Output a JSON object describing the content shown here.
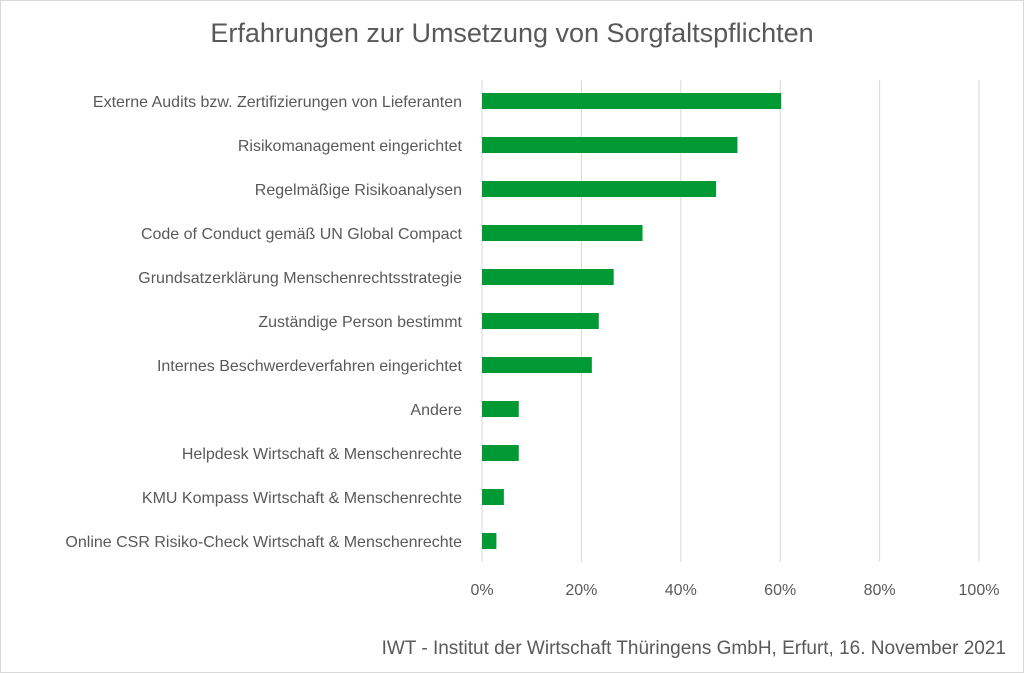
{
  "chart_data": {
    "type": "bar",
    "orientation": "horizontal",
    "title": "Erfahrungen zur Umsetzung von Sorgfaltspflichten",
    "categories": [
      "Externe Audits bzw. Zertifizierungen von Lieferanten",
      "Risikomanagement eingerichtet",
      "Regelmäßige Risikoanalysen",
      "Code of Conduct gemäß UN Global Compact",
      "Grundsatzerklärung Menschenrechtsstrategie",
      "Zuständige Person bestimmt",
      "Internes Beschwerdeverfahren eingerichtet",
      "Andere",
      "Helpdesk Wirtschaft & Menschenrechte",
      "KMU Kompass Wirtschaft & Menschenrechte",
      "Online CSR Risiko-Check Wirtschaft & Menschenrechte"
    ],
    "values": [
      60.2,
      51.4,
      47.1,
      32.3,
      26.5,
      23.5,
      22.1,
      7.4,
      7.4,
      4.4,
      2.9
    ],
    "xlim": [
      0,
      100
    ],
    "xticks": [
      "0%",
      "20%",
      "40%",
      "60%",
      "80%",
      "100%"
    ],
    "xtick_values": [
      0,
      20,
      40,
      60,
      80,
      100
    ],
    "grid": true,
    "bar_color": "#009933",
    "grid_color": "#d9d9d9",
    "source": "IWT - Institut der Wirtschaft Thüringens GmbH, Erfurt, 16. November 2021"
  }
}
